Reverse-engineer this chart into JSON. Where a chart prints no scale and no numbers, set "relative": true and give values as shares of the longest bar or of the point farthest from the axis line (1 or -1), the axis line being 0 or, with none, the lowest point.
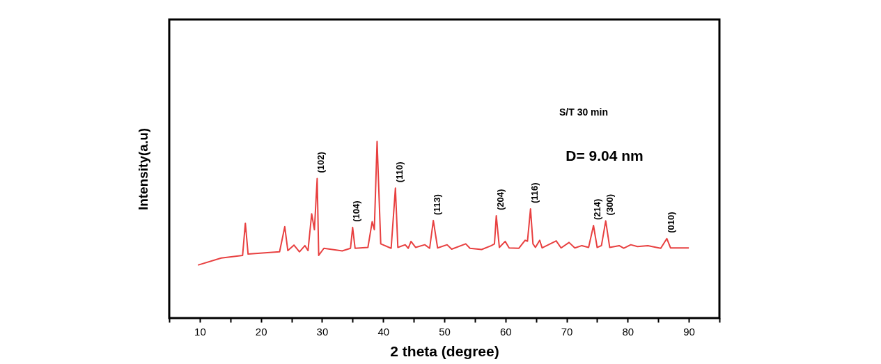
{
  "chart_data": {
    "type": "line",
    "relative": true,
    "xlabel": "2 theta (degree)",
    "ylabel": "Intensity(a.u)",
    "xlim": [
      5,
      95
    ],
    "xticks": [
      {
        "value": 5,
        "label": null
      },
      10,
      {
        "value": 15,
        "label": null
      },
      20,
      {
        "value": 25,
        "label": null
      },
      30,
      {
        "value": 35,
        "label": null
      },
      40,
      {
        "value": 45,
        "label": null
      },
      50,
      {
        "value": 55,
        "label": null
      },
      60,
      {
        "value": 65,
        "label": null
      },
      70,
      {
        "value": 75,
        "label": null
      },
      80,
      {
        "value": 85,
        "label": null
      },
      90,
      {
        "value": 95,
        "label": null
      }
    ],
    "grid": false,
    "marker": "none",
    "line_style": "solid",
    "series": [
      {
        "color": "#e84040",
        "x": [
          9.7,
          13.5,
          17.0,
          17.45,
          17.9,
          23.05,
          23.9,
          24.4,
          25.4,
          26.3,
          27.2,
          27.7,
          28.3,
          28.75,
          29.2,
          29.45,
          30.3,
          33.3,
          34.65,
          35.0,
          35.4,
          37.5,
          38.2,
          38.55,
          39.0,
          39.6,
          41.3,
          42.0,
          42.4,
          43.6,
          44.1,
          44.55,
          45.3,
          46.8,
          47.6,
          48.2,
          48.9,
          50.45,
          51.2,
          53.5,
          54.2,
          56.1,
          57.7,
          58.2,
          58.5,
          59.0,
          59.95,
          60.6,
          62.2,
          63.2,
          63.6,
          64.1,
          64.5,
          64.9,
          65.6,
          66.0,
          68.3,
          69.1,
          70.4,
          71.35,
          72.5,
          73.6,
          74.4,
          75.0,
          75.7,
          76.4,
          77.05,
          78.6,
          79.35,
          80.5,
          81.6,
          83.3,
          85.4,
          86.4,
          87.0,
          90.0
        ],
        "values": [
          0.3,
          0.34,
          0.355,
          0.537,
          0.362,
          0.375,
          0.517,
          0.382,
          0.413,
          0.375,
          0.41,
          0.382,
          0.59,
          0.5,
          0.79,
          0.355,
          0.395,
          0.38,
          0.395,
          0.513,
          0.395,
          0.4,
          0.546,
          0.5,
          1,
          0.42,
          0.395,
          0.736,
          0.4,
          0.415,
          0.395,
          0.434,
          0.4,
          0.415,
          0.395,
          0.552,
          0.397,
          0.415,
          0.39,
          0.42,
          0.395,
          0.388,
          0.41,
          0.42,
          0.579,
          0.4,
          0.434,
          0.397,
          0.395,
          0.44,
          0.435,
          0.618,
          0.42,
          0.4,
          0.44,
          0.397,
          0.437,
          0.397,
          0.428,
          0.397,
          0.41,
          0.4,
          0.524,
          0.4,
          0.41,
          0.55,
          0.4,
          0.41,
          0.395,
          0.415,
          0.405,
          0.41,
          0.395,
          0.45,
          0.397,
          0.397
        ]
      }
    ],
    "annotations": [
      {
        "text": "(102)",
        "x": 29.2,
        "y": 0.79
      },
      {
        "text": "(104)",
        "x": 35.0,
        "y": 0.513
      },
      {
        "text": "(110)",
        "x": 42.0,
        "y": 0.736
      },
      {
        "text": "(113)",
        "x": 48.2,
        "y": 0.552
      },
      {
        "text": "(204)",
        "x": 58.5,
        "y": 0.579
      },
      {
        "text": "(116)",
        "x": 64.1,
        "y": 0.618
      },
      {
        "text": "(214)",
        "x": 74.4,
        "y": 0.524
      },
      {
        "text": "(300)",
        "x": 76.4,
        "y": 0.55
      },
      {
        "text": "(010)",
        "x": 86.4,
        "y": 0.45
      },
      "S/T 30 min",
      "D= 9.04 nm"
    ]
  }
}
